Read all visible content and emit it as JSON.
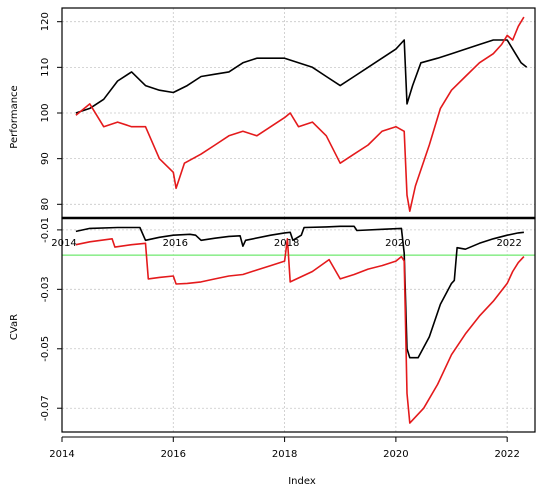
{
  "chart_data": [
    {
      "type": "line",
      "panel": "top",
      "title": "",
      "xlabel": "",
      "ylabel": "Performance",
      "ylim": [
        77,
        123
      ],
      "yticks": [
        80,
        90,
        100,
        110,
        120
      ],
      "ytick_labels": [
        "80",
        "90",
        "100",
        "110",
        "120"
      ],
      "xlim": [
        2014.0,
        2022.5
      ],
      "grid": true,
      "series": [
        {
          "color": "#000000",
          "points": [
            [
              2014.25,
              100
            ],
            [
              2014.5,
              101
            ],
            [
              2014.75,
              103
            ],
            [
              2015.0,
              107
            ],
            [
              2015.25,
              109
            ],
            [
              2015.5,
              106
            ],
            [
              2015.75,
              105
            ],
            [
              2016.0,
              104.5
            ],
            [
              2016.25,
              106
            ],
            [
              2016.5,
              108
            ],
            [
              2016.75,
              108.5
            ],
            [
              2017.0,
              109
            ],
            [
              2017.25,
              111
            ],
            [
              2017.5,
              112
            ],
            [
              2017.75,
              112
            ],
            [
              2018.0,
              112
            ],
            [
              2018.25,
              111
            ],
            [
              2018.5,
              110
            ],
            [
              2018.75,
              108
            ],
            [
              2019.0,
              106
            ],
            [
              2019.25,
              108
            ],
            [
              2019.5,
              110
            ],
            [
              2019.75,
              112
            ],
            [
              2020.0,
              114
            ],
            [
              2020.15,
              116
            ],
            [
              2020.2,
              102
            ],
            [
              2020.3,
              106
            ],
            [
              2020.45,
              111
            ],
            [
              2020.75,
              112
            ],
            [
              2021.0,
              113
            ],
            [
              2021.25,
              114
            ],
            [
              2021.5,
              115
            ],
            [
              2021.75,
              116
            ],
            [
              2022.0,
              116
            ],
            [
              2022.15,
              113
            ],
            [
              2022.25,
              111
            ],
            [
              2022.35,
              110
            ]
          ]
        },
        {
          "color": "#e41a1c",
          "points": [
            [
              2014.25,
              99.5
            ],
            [
              2014.5,
              102
            ],
            [
              2014.75,
              97
            ],
            [
              2015.0,
              98
            ],
            [
              2015.25,
              97
            ],
            [
              2015.5,
              97
            ],
            [
              2015.75,
              90
            ],
            [
              2016.0,
              87
            ],
            [
              2016.05,
              83.5
            ],
            [
              2016.2,
              89
            ],
            [
              2016.5,
              91
            ],
            [
              2016.75,
              93
            ],
            [
              2017.0,
              95
            ],
            [
              2017.25,
              96
            ],
            [
              2017.5,
              95
            ],
            [
              2017.75,
              97
            ],
            [
              2018.0,
              99
            ],
            [
              2018.1,
              100
            ],
            [
              2018.25,
              97
            ],
            [
              2018.5,
              98
            ],
            [
              2018.75,
              95
            ],
            [
              2019.0,
              89
            ],
            [
              2019.25,
              91
            ],
            [
              2019.5,
              93
            ],
            [
              2019.75,
              96
            ],
            [
              2020.0,
              97
            ],
            [
              2020.15,
              96
            ],
            [
              2020.2,
              82
            ],
            [
              2020.25,
              78.5
            ],
            [
              2020.35,
              84
            ],
            [
              2020.6,
              93
            ],
            [
              2020.8,
              101
            ],
            [
              2021.0,
              105
            ],
            [
              2021.25,
              108
            ],
            [
              2021.5,
              111
            ],
            [
              2021.75,
              113
            ],
            [
              2021.9,
              115
            ],
            [
              2022.0,
              117
            ],
            [
              2022.1,
              116
            ],
            [
              2022.2,
              119
            ],
            [
              2022.3,
              121
            ]
          ]
        }
      ]
    },
    {
      "type": "line",
      "panel": "bottom",
      "title": "",
      "xlabel": "Index",
      "ylabel": "CVaR",
      "ylim": [
        -0.078,
        -0.006
      ],
      "yticks": [
        -0.01,
        -0.03,
        -0.05,
        -0.07
      ],
      "ytick_labels": [
        "-0.01",
        "-0.03",
        "-0.05",
        "-0.07"
      ],
      "xlim": [
        2014.0,
        2022.5
      ],
      "xticks": [
        2014,
        2016,
        2018,
        2020,
        2022
      ],
      "xtick_labels": [
        "2014",
        "2016",
        "2018",
        "2020",
        "2022"
      ],
      "grid": true,
      "hline": {
        "y": -0.0185,
        "color": "#90ee90"
      },
      "series": [
        {
          "color": "#000000",
          "points": [
            [
              2014.25,
              -0.0105
            ],
            [
              2014.5,
              -0.0095
            ],
            [
              2015.0,
              -0.0092
            ],
            [
              2015.4,
              -0.0092
            ],
            [
              2015.5,
              -0.0135
            ],
            [
              2015.75,
              -0.0125
            ],
            [
              2016.0,
              -0.0118
            ],
            [
              2016.3,
              -0.0115
            ],
            [
              2016.4,
              -0.0118
            ],
            [
              2016.5,
              -0.0135
            ],
            [
              2016.75,
              -0.0128
            ],
            [
              2017.0,
              -0.0122
            ],
            [
              2017.2,
              -0.012
            ],
            [
              2017.25,
              -0.0155
            ],
            [
              2017.3,
              -0.0135
            ],
            [
              2017.75,
              -0.0118
            ],
            [
              2018.0,
              -0.011
            ],
            [
              2018.1,
              -0.0108
            ],
            [
              2018.15,
              -0.0135
            ],
            [
              2018.3,
              -0.0118
            ],
            [
              2018.35,
              -0.0092
            ],
            [
              2018.75,
              -0.009
            ],
            [
              2019.0,
              -0.0088
            ],
            [
              2019.25,
              -0.0088
            ],
            [
              2019.3,
              -0.0102
            ],
            [
              2019.75,
              -0.0098
            ],
            [
              2020.0,
              -0.0096
            ],
            [
              2020.1,
              -0.0095
            ],
            [
              2020.15,
              -0.0178
            ],
            [
              2020.2,
              -0.05
            ],
            [
              2020.25,
              -0.053
            ],
            [
              2020.4,
              -0.053
            ],
            [
              2020.6,
              -0.046
            ],
            [
              2020.8,
              -0.035
            ],
            [
              2021.0,
              -0.028
            ],
            [
              2021.05,
              -0.027
            ],
            [
              2021.1,
              -0.016
            ],
            [
              2021.25,
              -0.0165
            ],
            [
              2021.5,
              -0.0145
            ],
            [
              2021.75,
              -0.013
            ],
            [
              2022.0,
              -0.0118
            ],
            [
              2022.2,
              -0.011
            ],
            [
              2022.3,
              -0.0108
            ]
          ]
        },
        {
          "color": "#e41a1c",
          "points": [
            [
              2014.25,
              -0.015
            ],
            [
              2014.5,
              -0.014
            ],
            [
              2014.9,
              -0.013
            ],
            [
              2014.95,
              -0.0158
            ],
            [
              2015.25,
              -0.015
            ],
            [
              2015.5,
              -0.0145
            ],
            [
              2015.55,
              -0.0265
            ],
            [
              2015.75,
              -0.026
            ],
            [
              2016.0,
              -0.0255
            ],
            [
              2016.05,
              -0.0282
            ],
            [
              2016.25,
              -0.028
            ],
            [
              2016.5,
              -0.0275
            ],
            [
              2016.75,
              -0.0265
            ],
            [
              2017.0,
              -0.0255
            ],
            [
              2017.25,
              -0.025
            ],
            [
              2017.5,
              -0.0235
            ],
            [
              2017.75,
              -0.022
            ],
            [
              2018.0,
              -0.0205
            ],
            [
              2018.05,
              -0.013
            ],
            [
              2018.1,
              -0.0275
            ],
            [
              2018.5,
              -0.024
            ],
            [
              2018.8,
              -0.02
            ],
            [
              2019.0,
              -0.0265
            ],
            [
              2019.25,
              -0.025
            ],
            [
              2019.5,
              -0.0232
            ],
            [
              2019.75,
              -0.022
            ],
            [
              2020.0,
              -0.0205
            ],
            [
              2020.1,
              -0.019
            ],
            [
              2020.15,
              -0.0205
            ],
            [
              2020.2,
              -0.065
            ],
            [
              2020.25,
              -0.075
            ],
            [
              2020.35,
              -0.073
            ],
            [
              2020.5,
              -0.07
            ],
            [
              2020.75,
              -0.062
            ],
            [
              2021.0,
              -0.052
            ],
            [
              2021.25,
              -0.045
            ],
            [
              2021.5,
              -0.039
            ],
            [
              2021.75,
              -0.034
            ],
            [
              2022.0,
              -0.028
            ],
            [
              2022.1,
              -0.024
            ],
            [
              2022.2,
              -0.021
            ],
            [
              2022.3,
              -0.019
            ]
          ]
        }
      ]
    }
  ]
}
